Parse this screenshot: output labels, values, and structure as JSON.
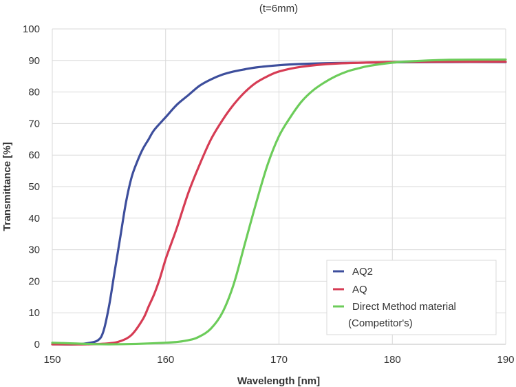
{
  "chart_data": {
    "type": "line",
    "title": "(t=6mm)",
    "xlabel": "Wavelength [nm]",
    "ylabel": "Transmittance [%]",
    "xlim": [
      150,
      190
    ],
    "ylim": [
      0,
      100
    ],
    "xticks": [
      "150",
      "160",
      "170",
      "180",
      "190"
    ],
    "yticks": [
      "0",
      "10",
      "20",
      "30",
      "40",
      "50",
      "60",
      "70",
      "80",
      "90",
      "100"
    ],
    "grid": true,
    "legend_position": "bottom-right",
    "legend_note": "(Competitor's)",
    "series": [
      {
        "name": "AQ2",
        "color": "#3d4e9c",
        "x": [
          150,
          152,
          153,
          154,
          154.5,
          155,
          155.5,
          156,
          156.5,
          157,
          157.5,
          158,
          158.5,
          159,
          160,
          161,
          162,
          163,
          164,
          165,
          166,
          167,
          168,
          170,
          172,
          175,
          180,
          185,
          190
        ],
        "y": [
          0,
          0,
          0.3,
          1.2,
          4,
          12,
          23,
          34,
          45,
          53,
          58,
          62,
          65,
          68,
          72,
          76,
          79,
          82,
          84,
          85.5,
          86.5,
          87.2,
          87.8,
          88.5,
          88.9,
          89.2,
          89.4,
          89.5,
          89.5
        ]
      },
      {
        "name": "AQ",
        "color": "#d63c54",
        "x": [
          150,
          153,
          155,
          156,
          157,
          158,
          158.5,
          159,
          159.5,
          160,
          160.5,
          161,
          162,
          163,
          164,
          165,
          166,
          167,
          168,
          169,
          170,
          172,
          175,
          180,
          185,
          190
        ],
        "y": [
          0,
          0,
          0.3,
          1,
          3,
          8,
          12,
          16,
          21,
          27,
          32,
          37,
          48,
          57,
          65,
          71,
          76,
          80,
          83,
          85,
          86.5,
          88,
          89,
          89.5,
          89.6,
          89.6
        ]
      },
      {
        "name": "Direct Method material",
        "color": "#6ccc5a",
        "x": [
          150,
          155,
          160,
          162,
          163,
          164,
          165,
          166,
          167,
          168,
          169,
          170,
          171,
          172,
          173,
          174,
          175,
          176,
          177,
          178,
          180,
          182,
          185,
          190
        ],
        "y": [
          0.5,
          0,
          0.5,
          1.3,
          2.5,
          5,
          10,
          19,
          32,
          45,
          57,
          66,
          72,
          77,
          80.5,
          83,
          85,
          86.5,
          87.5,
          88.3,
          89.3,
          89.8,
          90.2,
          90.3
        ]
      }
    ]
  }
}
